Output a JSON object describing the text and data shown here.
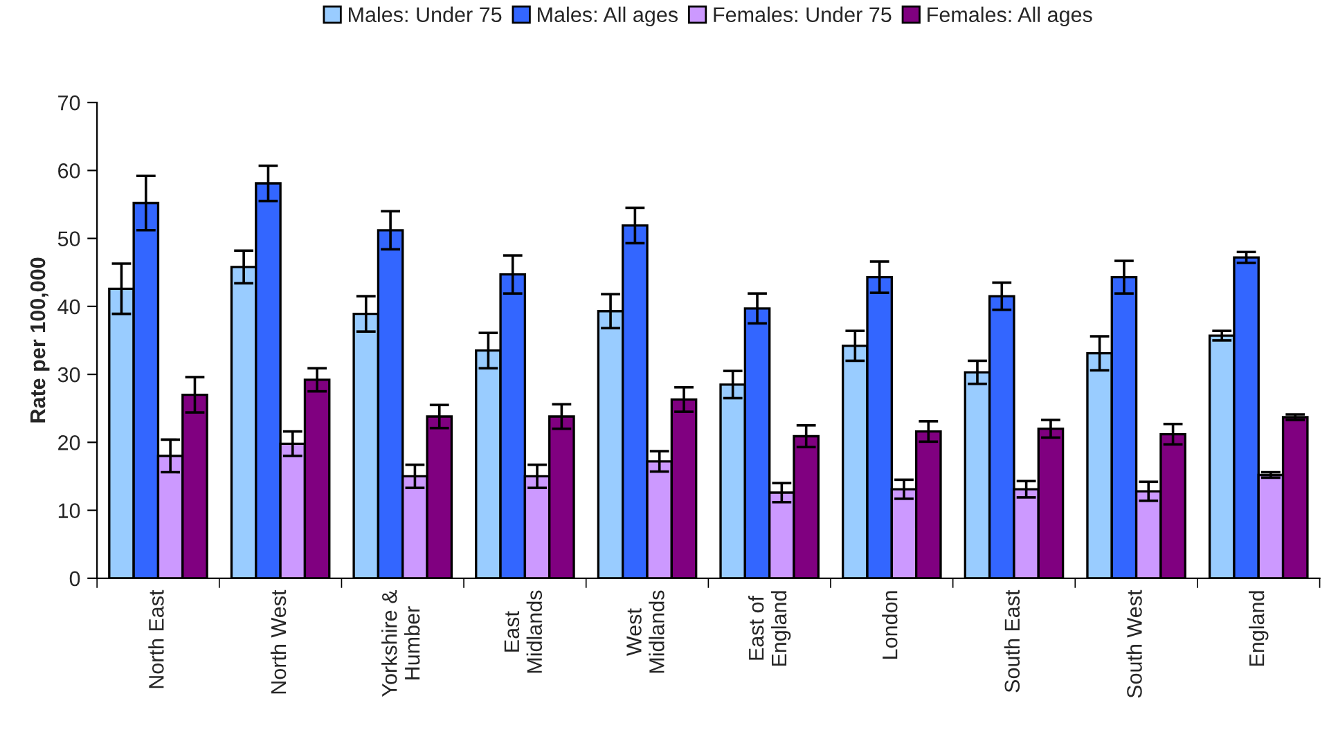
{
  "chart_data": {
    "type": "bar",
    "ylabel": "Rate per 100,000",
    "categories": [
      "North East",
      "North West",
      "Yorkshire &\nHumber",
      "East\nMidlands",
      "West\nMidlands",
      "East of\nEngland",
      "London",
      "South East",
      "South West",
      "England"
    ],
    "series": [
      {
        "name": "Males: Under 75",
        "color": "#99ccff",
        "values": [
          42.6,
          45.8,
          38.9,
          33.5,
          39.3,
          28.5,
          34.2,
          30.3,
          33.1,
          35.7
        ],
        "errors": [
          3.7,
          2.4,
          2.6,
          2.6,
          2.5,
          2.0,
          2.2,
          1.7,
          2.5,
          0.7
        ]
      },
      {
        "name": "Males: All ages",
        "color": "#3366ff",
        "values": [
          55.2,
          58.1,
          51.2,
          44.7,
          51.9,
          39.7,
          44.3,
          41.5,
          44.3,
          47.2
        ],
        "errors": [
          4.0,
          2.6,
          2.8,
          2.8,
          2.6,
          2.2,
          2.3,
          2.0,
          2.4,
          0.8
        ]
      },
      {
        "name": "Females: Under 75",
        "color": "#cc99ff",
        "values": [
          18.0,
          19.8,
          15.0,
          15.0,
          17.2,
          12.6,
          13.1,
          13.1,
          12.8,
          15.2
        ],
        "errors": [
          2.4,
          1.8,
          1.7,
          1.7,
          1.5,
          1.4,
          1.4,
          1.2,
          1.4,
          0.4
        ]
      },
      {
        "name": "Females: All ages",
        "color": "#800080",
        "values": [
          27.0,
          29.2,
          23.8,
          23.8,
          26.3,
          20.9,
          21.6,
          22.0,
          21.2,
          23.7
        ],
        "errors": [
          2.6,
          1.7,
          1.7,
          1.8,
          1.8,
          1.6,
          1.5,
          1.3,
          1.5,
          0.4
        ]
      }
    ],
    "ylim": [
      0,
      70
    ],
    "yticks": [
      0,
      10,
      20,
      30,
      40,
      50,
      60,
      70
    ],
    "grid": false,
    "legend": "top"
  }
}
